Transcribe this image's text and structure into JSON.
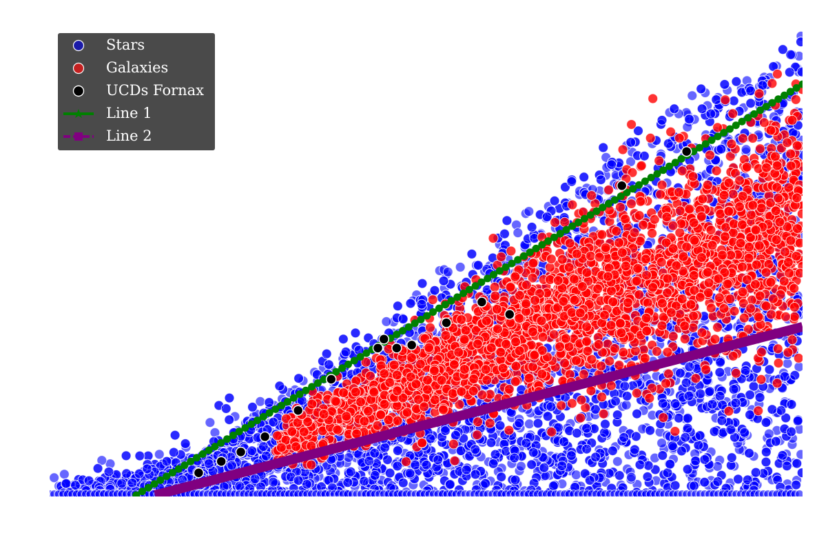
{
  "chart_data": {
    "type": "scatter",
    "legend_position": "top-left",
    "grid": false,
    "axes_visible": false,
    "xlim": [
      0,
      1
    ],
    "ylim": [
      0,
      1
    ],
    "series": [
      {
        "name": "Stars",
        "kind": "scatter",
        "color": "#0000ff",
        "edgecolor": "#ffffff",
        "alpha": 0.6,
        "description_points": [
          [
            0.0,
            0.01
          ],
          [
            0.1,
            0.03
          ],
          [
            0.2,
            0.09
          ],
          [
            0.3,
            0.17
          ],
          [
            0.4,
            0.27
          ],
          [
            0.5,
            0.38
          ],
          [
            0.6,
            0.5
          ],
          [
            0.7,
            0.6
          ],
          [
            0.8,
            0.7
          ],
          [
            0.9,
            0.78
          ],
          [
            1.0,
            0.88
          ]
        ]
      },
      {
        "name": "Galaxies",
        "kind": "scatter",
        "color": "#ff0000",
        "edgecolor": "#ffffff",
        "alpha": 0.8,
        "description_points": [
          [
            0.3,
            0.1
          ],
          [
            0.4,
            0.17
          ],
          [
            0.5,
            0.24
          ],
          [
            0.6,
            0.31
          ],
          [
            0.7,
            0.38
          ],
          [
            0.8,
            0.44
          ],
          [
            0.9,
            0.5
          ],
          [
            1.0,
            0.56
          ]
        ]
      },
      {
        "name": "UCDs Fornax",
        "kind": "scatter",
        "color": "#000000",
        "edgecolor": "#ffffff",
        "points": [
          [
            0.198,
            0.045
          ],
          [
            0.228,
            0.068
          ],
          [
            0.254,
            0.087
          ],
          [
            0.286,
            0.118
          ],
          [
            0.33,
            0.171
          ],
          [
            0.374,
            0.234
          ],
          [
            0.436,
            0.297
          ],
          [
            0.444,
            0.315
          ],
          [
            0.461,
            0.297
          ],
          [
            0.481,
            0.303
          ],
          [
            0.527,
            0.348
          ],
          [
            0.574,
            0.39
          ],
          [
            0.611,
            0.365
          ],
          [
            0.76,
            0.625
          ],
          [
            0.846,
            0.694
          ]
        ]
      },
      {
        "name": "Line 1",
        "kind": "line",
        "color": "#008000",
        "marker": "star",
        "linestyle": "solid",
        "x": [
          0.115,
          1.0
        ],
        "y": [
          0.0,
          0.83
        ]
      },
      {
        "name": "Line 2",
        "kind": "line",
        "color": "#800080",
        "marker": "square",
        "linestyle": "dashed",
        "x": [
          0.14,
          1.0
        ],
        "y": [
          0.0,
          0.34
        ]
      }
    ],
    "legend": [
      "Stars",
      "Galaxies",
      "UCDs Fornax",
      "Line 1",
      "Line 2"
    ]
  }
}
